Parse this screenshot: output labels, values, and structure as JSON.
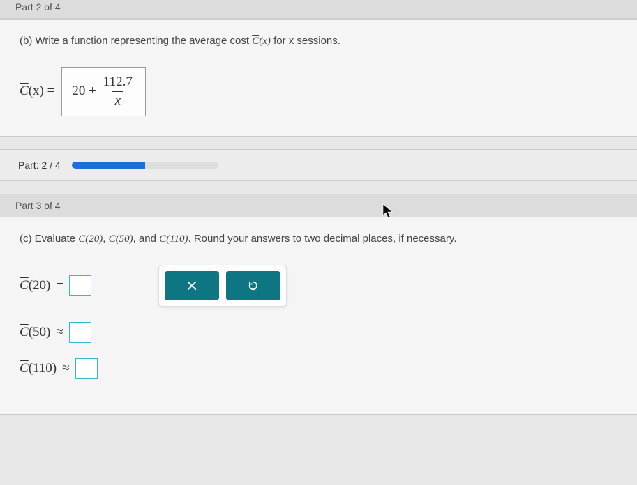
{
  "part2": {
    "header": "Part 2 of 4",
    "question_prefix": "(b) Write a function representing the average cost ",
    "question_cbar": "C",
    "question_paren": "(x)",
    "question_suffix": " for x sessions.",
    "formula_lhs_c": "C",
    "formula_lhs_paren": "(x)",
    "formula_eq": " = ",
    "answer_leading": "20 +",
    "answer_numerator": "112.7",
    "answer_denominator": "x"
  },
  "progress": {
    "label": "Part: 2 / 4",
    "percent": 50,
    "bar_bg": "#dddddd",
    "bar_fill": "#1d6fd8"
  },
  "part3": {
    "header": "Part 3 of 4",
    "question_prefix": "(c) Evaluate ",
    "c1": "C",
    "c1p": "(20)",
    "sep1": ", ",
    "c2": "C",
    "c2p": "(50)",
    "sep2": ", and ",
    "c3": "C",
    "c3p": "(110)",
    "question_suffix": ". Round your answers to two decimal places, if necessary.",
    "rows": [
      {
        "c": "C",
        "arg": "(20)",
        "op": "="
      },
      {
        "c": "C",
        "arg": "(50)",
        "op": "≈"
      },
      {
        "c": "C",
        "arg": "(110)",
        "op": "≈"
      }
    ]
  },
  "buttons": {
    "close_color": "#ffffff",
    "reset_color": "#ffffff",
    "btn_bg": "#0d7682"
  },
  "colors": {
    "page_bg": "#e8e8e8",
    "panel_bg": "#f5f5f5",
    "header_bg": "#dcdcdc",
    "input_border": "#3cb4c9",
    "text": "#333333"
  }
}
